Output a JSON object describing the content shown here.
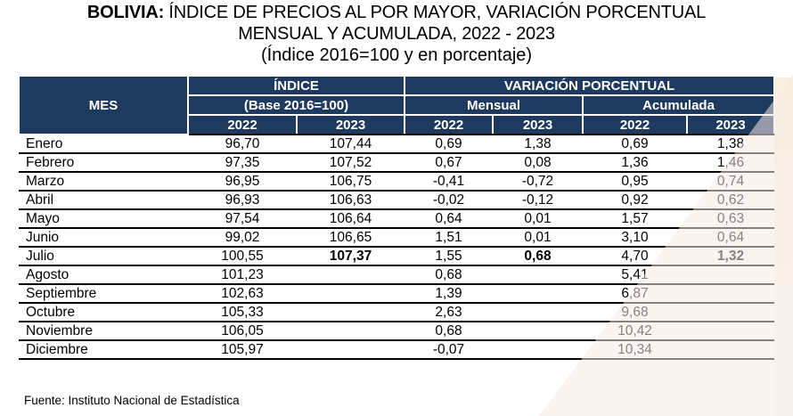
{
  "title": {
    "prefix": "BOLIVIA:",
    "line1": " ÍNDICE DE PRECIOS AL POR MAYOR, VARIACIÓN PORCENTUAL",
    "line2": "MENSUAL Y ACUMULADA, 2022 - 2023",
    "subtitle": "(Índice 2016=100 y en porcentaje)"
  },
  "table": {
    "col_mes": "MES",
    "group_indice": "ÍNDICE",
    "group_variacion": "VARIACIÓN PORCENTUAL",
    "sub_base": "(Base 2016=100)",
    "sub_mensual": "Mensual",
    "sub_acumulada": "Acumulada",
    "years": [
      "2022",
      "2023",
      "2022",
      "2023",
      "2022",
      "2023"
    ],
    "rows": [
      {
        "mes": "Enero",
        "values": [
          "96,70",
          "107,44",
          "0,69",
          "1,38",
          "0,69",
          "1,38"
        ]
      },
      {
        "mes": "Febrero",
        "values": [
          "97,35",
          "107,52",
          "0,67",
          "0,08",
          "1,36",
          "1,46"
        ]
      },
      {
        "mes": "Marzo",
        "values": [
          "96,95",
          "106,75",
          "-0,41",
          "-0,72",
          "0,95",
          "0,74"
        ]
      },
      {
        "mes": "Abril",
        "values": [
          "96,93",
          "106,63",
          "-0,02",
          "-0,12",
          "0,92",
          "0,62"
        ]
      },
      {
        "mes": "Mayo",
        "values": [
          "97,54",
          "106,64",
          "0,64",
          "0,01",
          "1,57",
          "0,63"
        ]
      },
      {
        "mes": "Junio",
        "values": [
          "99,02",
          "106,65",
          "1,51",
          "0,01",
          "3,10",
          "0,64"
        ]
      },
      {
        "mes": "Julio",
        "values": [
          "100,55",
          "107,37",
          "1,55",
          "0,68",
          "4,70",
          "1,32"
        ],
        "bold_cols": [
          1,
          3,
          5
        ]
      },
      {
        "mes": "Agosto",
        "values": [
          "101,23",
          "",
          "0,68",
          "",
          "5,41",
          ""
        ]
      },
      {
        "mes": "Septiembre",
        "values": [
          "102,63",
          "",
          "1,39",
          "",
          "6,87",
          ""
        ]
      },
      {
        "mes": "Octubre",
        "values": [
          "105,33",
          "",
          "2,63",
          "",
          "9,68",
          ""
        ]
      },
      {
        "mes": "Noviembre",
        "values": [
          "106,05",
          "",
          "0,68",
          "",
          "10,42",
          ""
        ]
      },
      {
        "mes": "Diciembre",
        "values": [
          "105,97",
          "",
          "-0,07",
          "",
          "10,34",
          ""
        ]
      }
    ]
  },
  "source": "Fuente: Instituto Nacional de Estadística",
  "colors": {
    "header_bg": "#1e3a5e",
    "header_text": "#ffffff",
    "row_line": "#000000",
    "scan_artifact": "#f5e9e4"
  }
}
